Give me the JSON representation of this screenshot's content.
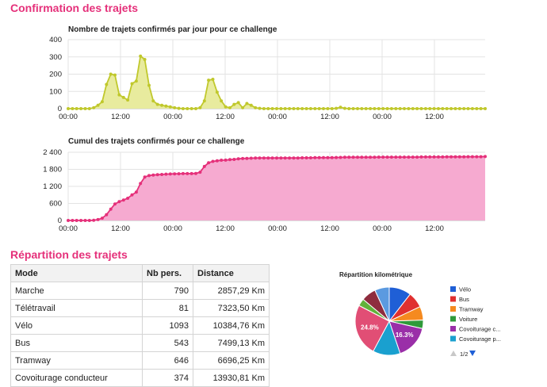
{
  "section1_title": "Confirmation des trajets",
  "section2_title": "Répartition des trajets",
  "chart_data": [
    {
      "type": "area",
      "title": "Nombre de trajets confirmés par jour pour ce challenge",
      "ylim": [
        0,
        400
      ],
      "yticks": [
        "400",
        "300",
        "200",
        "100",
        "0"
      ],
      "xticks": [
        "00:00",
        "12:00",
        "00:00",
        "12:00",
        "00:00",
        "12:00",
        "00:00",
        "12:00"
      ],
      "color": "#c0c82c",
      "fill": "#e8eb9e",
      "grid": true,
      "legend": false,
      "y": [
        0,
        0,
        0,
        0,
        0,
        0,
        5,
        20,
        40,
        140,
        200,
        195,
        80,
        65,
        50,
        145,
        160,
        305,
        285,
        135,
        45,
        25,
        20,
        15,
        10,
        5,
        2,
        0,
        0,
        0,
        0,
        5,
        45,
        165,
        170,
        95,
        45,
        10,
        5,
        25,
        35,
        5,
        30,
        20,
        5,
        2,
        0,
        0,
        0,
        0,
        0,
        0,
        0,
        0,
        0,
        0,
        0,
        0,
        0,
        0,
        0,
        0,
        0,
        2,
        8,
        2,
        0,
        0,
        0,
        0,
        0,
        0,
        0,
        0,
        0,
        0,
        0,
        0,
        0,
        0,
        0,
        0,
        0,
        0,
        0,
        0,
        0,
        0,
        0,
        0,
        0,
        0,
        0,
        0,
        0,
        0,
        0,
        0,
        0
      ]
    },
    {
      "type": "area",
      "title": "Cumul des trajets confirmés pour ce challenge",
      "ylim": [
        0,
        2400
      ],
      "yticks": [
        "2 400",
        "1 800",
        "1 200",
        "600",
        "0"
      ],
      "xticks": [
        "00:00",
        "12:00",
        "00:00",
        "12:00",
        "00:00",
        "12:00",
        "00:00",
        "12:00"
      ],
      "color": "#e5307a",
      "fill": "#f6aad0",
      "grid": true,
      "legend": false,
      "y": [
        0,
        0,
        0,
        0,
        0,
        0,
        5,
        30,
        80,
        200,
        400,
        580,
        660,
        720,
        780,
        900,
        1000,
        1300,
        1530,
        1580,
        1600,
        1610,
        1620,
        1630,
        1635,
        1640,
        1645,
        1650,
        1650,
        1650,
        1655,
        1700,
        1900,
        2030,
        2080,
        2100,
        2120,
        2125,
        2140,
        2150,
        2170,
        2180,
        2185,
        2190,
        2195,
        2200,
        2200,
        2200,
        2200,
        2200,
        2200,
        2200,
        2200,
        2200,
        2200,
        2205,
        2205,
        2205,
        2210,
        2210,
        2210,
        2210,
        2210,
        2215,
        2220,
        2225,
        2225,
        2225,
        2225,
        2225,
        2225,
        2225,
        2225,
        2230,
        2230,
        2230,
        2230,
        2230,
        2230,
        2230,
        2230,
        2230,
        2230,
        2235,
        2235,
        2235,
        2235,
        2235,
        2235,
        2240,
        2240,
        2240,
        2240,
        2240,
        2245,
        2245,
        2245,
        2245,
        2250
      ]
    },
    {
      "type": "pie",
      "title": "Répartition kilométrique",
      "legend": [
        "Vélo",
        "Bus",
        "Tramway",
        "Voiture",
        "Covoiturage c...",
        "Covoiturage p..."
      ],
      "legend_colors": [
        "#1f5fd6",
        "#e03030",
        "#f58a1f",
        "#2f9a3a",
        "#9a2fa8",
        "#1aa0cf"
      ],
      "pager": "1/2",
      "slices": [
        {
          "label": "",
          "value": 10.5,
          "color": "#1f5fd6"
        },
        {
          "label": "",
          "value": 7.5,
          "color": "#e03030"
        },
        {
          "label": "",
          "value": 6.5,
          "color": "#f58a1f"
        },
        {
          "label": "",
          "value": 4.0,
          "color": "#2f9a3a"
        },
        {
          "label": "16.3%",
          "value": 16.3,
          "color": "#9a2fa8"
        },
        {
          "label": "",
          "value": 13.0,
          "color": "#1aa0cf"
        },
        {
          "label": "24.8%",
          "value": 24.8,
          "color": "#e14e75"
        },
        {
          "label": "",
          "value": 3.5,
          "color": "#62b23a"
        },
        {
          "label": "",
          "value": 7.0,
          "color": "#8e2c3e"
        },
        {
          "label": "",
          "value": 6.9,
          "color": "#5b9ae0"
        }
      ]
    }
  ],
  "table": {
    "headers": [
      "Mode",
      "Nb pers.",
      "Distance"
    ],
    "rows": [
      [
        "Marche",
        "790",
        "2857,29 Km"
      ],
      [
        "Télétravail",
        "81",
        "7323,50 Km"
      ],
      [
        "Vélo",
        "1093",
        "10384,76 Km"
      ],
      [
        "Bus",
        "543",
        "7499,13 Km"
      ],
      [
        "Tramway",
        "646",
        "6696,25 Km"
      ],
      [
        "Covoiturage conducteur",
        "374",
        "13930,81 Km"
      ]
    ]
  }
}
